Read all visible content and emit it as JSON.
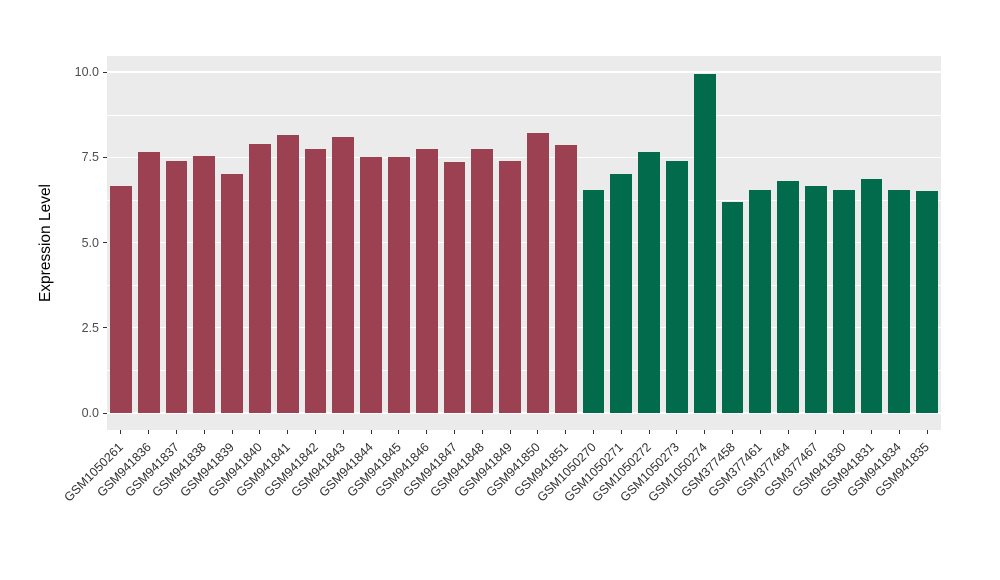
{
  "chart_data": {
    "type": "bar",
    "title": "",
    "xlabel": "",
    "ylabel": "Expression Level",
    "ylim": [
      -0.5,
      10.45
    ],
    "yticks": [
      0.0,
      2.5,
      5.0,
      7.5,
      10.0
    ],
    "ytick_labels": [
      "0.0",
      "2.5",
      "5.0",
      "7.5",
      "10.0"
    ],
    "grid": "major+minor white on gray panel",
    "legend": "none",
    "categories": [
      "GSM1050261",
      "GSM941836",
      "GSM941837",
      "GSM941838",
      "GSM941839",
      "GSM941840",
      "GSM941841",
      "GSM941842",
      "GSM941843",
      "GSM941844",
      "GSM941845",
      "GSM941846",
      "GSM941847",
      "GSM941848",
      "GSM941849",
      "GSM941850",
      "GSM941851",
      "GSM1050270",
      "GSM1050271",
      "GSM1050272",
      "GSM1050273",
      "GSM1050274",
      "GSM377458",
      "GSM377461",
      "GSM377464",
      "GSM377467",
      "GSM941830",
      "GSM941831",
      "GSM941834",
      "GSM941835"
    ],
    "values": [
      6.65,
      7.65,
      7.4,
      7.55,
      7.0,
      7.9,
      8.15,
      7.75,
      8.1,
      7.5,
      7.5,
      7.75,
      7.35,
      7.75,
      7.4,
      8.2,
      7.85,
      6.55,
      7.0,
      7.65,
      7.4,
      9.95,
      6.2,
      6.55,
      6.8,
      6.65,
      6.55,
      6.85,
      6.55,
      6.5
    ],
    "groups": [
      "maroon",
      "maroon",
      "maroon",
      "maroon",
      "maroon",
      "maroon",
      "maroon",
      "maroon",
      "maroon",
      "maroon",
      "maroon",
      "maroon",
      "maroon",
      "maroon",
      "maroon",
      "maroon",
      "maroon",
      "green",
      "green",
      "green",
      "green",
      "green",
      "green",
      "green",
      "green",
      "green",
      "green",
      "green",
      "green",
      "green"
    ],
    "group_colors": {
      "maroon": "#9B4151",
      "green": "#026B4B"
    }
  },
  "style": {
    "panel_bg": "#EBEBEB",
    "grid_color": "#FFFFFF",
    "outer_bg": "#FFFFFF",
    "axis_text_color": "#303030",
    "tick_color": "#333333"
  }
}
